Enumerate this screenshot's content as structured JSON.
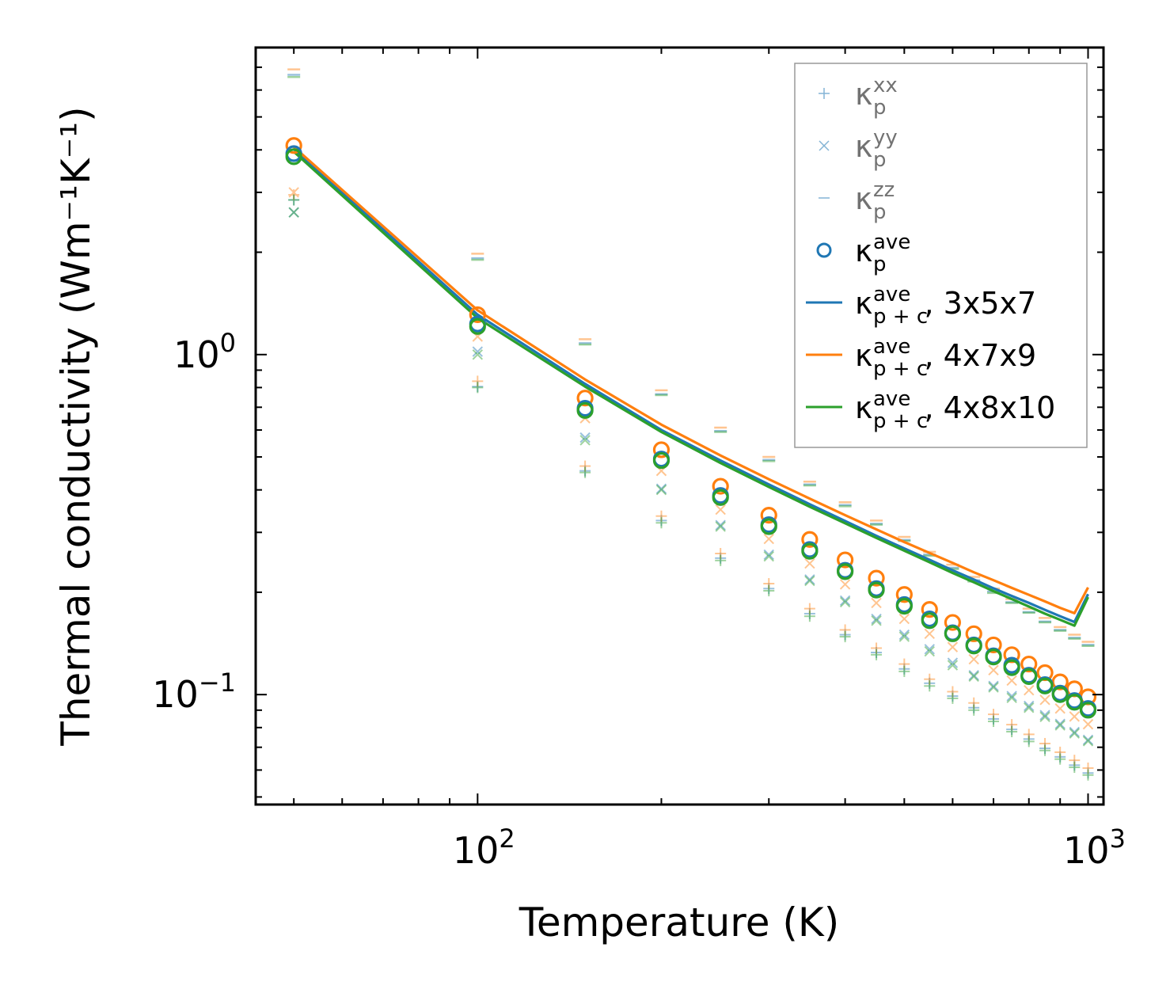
{
  "chart_data": {
    "type": "scatter",
    "title": "",
    "xlabel": "Temperature (K)",
    "ylabel": "Thermal conductivity (Wm⁻¹K⁻¹)",
    "xscale": "log",
    "yscale": "log",
    "xlim": [
      43.3,
      1060
    ],
    "ylim": [
      0.0475,
      8.0
    ],
    "x_ticks": [
      {
        "value": 100,
        "base": "10",
        "exp": "2"
      },
      {
        "value": 1000,
        "base": "10",
        "exp": "3"
      }
    ],
    "y_ticks": [
      {
        "value": 1,
        "base": "10",
        "exp": "0"
      },
      {
        "value": 0.1,
        "base": "10",
        "exp": "−1"
      }
    ],
    "legend_position": "top-right",
    "colors": {
      "blue": "#1f77b4",
      "orange": "#ff7f0e",
      "green": "#2ca02c"
    },
    "legend": [
      {
        "symbol": "+",
        "label": "κ",
        "sub": "p",
        "sup": "xx",
        "suffix": ""
      },
      {
        "symbol": "x",
        "label": "κ",
        "sub": "p",
        "sup": "yy",
        "suffix": ""
      },
      {
        "symbol": "_",
        "label": "κ",
        "sub": "p",
        "sup": "zz",
        "suffix": ""
      },
      {
        "symbol": "o",
        "label": "κ",
        "sub": "p",
        "sup": "ave",
        "suffix": ""
      },
      {
        "symbol": "line-blue",
        "label": "κ",
        "sub": "p + c",
        "sup": "ave",
        "suffix": ", 3x5x7"
      },
      {
        "symbol": "line-orange",
        "label": "κ",
        "sub": "p + c",
        "sup": "ave",
        "suffix": ", 4x7x9"
      },
      {
        "symbol": "line-green",
        "label": "κ",
        "sub": "p + c",
        "sup": "ave",
        "suffix": ", 4x8x10"
      }
    ],
    "x": [
      50,
      100,
      150,
      200,
      250,
      300,
      350,
      400,
      450,
      500,
      550,
      600,
      650,
      700,
      750,
      800,
      850,
      900,
      950,
      1000
    ],
    "series": [
      {
        "name": "3x5x7",
        "color": "#1f77b4",
        "kxx": [
          2.85,
          0.805,
          0.455,
          0.325,
          0.252,
          0.205,
          0.173,
          0.15,
          0.133,
          0.119,
          0.108,
          0.099,
          0.0915,
          0.0848,
          0.079,
          0.074,
          0.0695,
          0.0656,
          0.062,
          0.0588
        ],
        "kyy": [
          2.62,
          1.02,
          0.57,
          0.403,
          0.315,
          0.258,
          0.218,
          0.189,
          0.167,
          0.15,
          0.136,
          0.124,
          0.114,
          0.106,
          0.099,
          0.0926,
          0.087,
          0.082,
          0.0776,
          0.0736
        ],
        "kzz": [
          6.65,
          1.92,
          1.08,
          0.765,
          0.596,
          0.49,
          0.415,
          0.361,
          0.318,
          0.285,
          0.258,
          0.236,
          0.217,
          0.201,
          0.187,
          0.175,
          0.164,
          0.155,
          0.147,
          0.14
        ],
        "kave": [
          3.9,
          1.23,
          0.695,
          0.493,
          0.385,
          0.316,
          0.267,
          0.232,
          0.205,
          0.184,
          0.167,
          0.152,
          0.14,
          0.13,
          0.122,
          0.114,
          0.107,
          0.101,
          0.096,
          0.091
        ],
        "kpc": [
          4.02,
          1.31,
          0.82,
          0.6,
          0.488,
          0.415,
          0.363,
          0.324,
          0.293,
          0.269,
          0.249,
          0.232,
          0.218,
          0.2055,
          0.195,
          0.186,
          0.1775,
          0.17,
          0.1635,
          0.1975
        ]
      },
      {
        "name": "4x7x9",
        "color": "#ff7f0e",
        "kxx": [
          2.95,
          0.835,
          0.47,
          0.335,
          0.26,
          0.212,
          0.179,
          0.155,
          0.137,
          0.123,
          0.111,
          0.102,
          0.0945,
          0.0875,
          0.0816,
          0.0764,
          0.0718,
          0.0677,
          0.0641,
          0.0608
        ],
        "kyy": [
          3.0,
          1.13,
          0.65,
          0.455,
          0.35,
          0.287,
          0.243,
          0.211,
          0.186,
          0.167,
          0.151,
          0.138,
          0.127,
          0.118,
          0.11,
          0.103,
          0.0965,
          0.091,
          0.0862,
          0.0818
        ],
        "kzz": [
          6.9,
          1.98,
          1.11,
          0.785,
          0.61,
          0.5,
          0.423,
          0.368,
          0.325,
          0.291,
          0.263,
          0.241,
          0.222,
          0.205,
          0.191,
          0.179,
          0.168,
          0.158,
          0.15,
          0.143
        ],
        "kave": [
          4.12,
          1.31,
          0.745,
          0.525,
          0.41,
          0.337,
          0.286,
          0.249,
          0.22,
          0.197,
          0.178,
          0.163,
          0.151,
          0.14,
          0.131,
          0.123,
          0.116,
          0.109,
          0.104,
          0.0985
        ],
        "kpc": [
          4.08,
          1.35,
          0.845,
          0.622,
          0.505,
          0.43,
          0.377,
          0.337,
          0.306,
          0.281,
          0.261,
          0.244,
          0.229,
          0.217,
          0.206,
          0.1965,
          0.188,
          0.18,
          0.1735,
          0.2065
        ]
      },
      {
        "name": "4x8x10",
        "color": "#2ca02c",
        "kxx": [
          2.85,
          0.8,
          0.45,
          0.32,
          0.248,
          0.202,
          0.17,
          0.148,
          0.131,
          0.117,
          0.106,
          0.0975,
          0.09,
          0.0834,
          0.0778,
          0.0728,
          0.0685,
          0.0646,
          0.0611,
          0.058
        ],
        "kyy": [
          2.62,
          1.0,
          0.56,
          0.4,
          0.312,
          0.255,
          0.216,
          0.187,
          0.165,
          0.148,
          0.134,
          0.122,
          0.113,
          0.105,
          0.0978,
          0.0915,
          0.086,
          0.0812,
          0.0769,
          0.073
        ],
        "kzz": [
          6.55,
          1.9,
          1.07,
          0.76,
          0.592,
          0.486,
          0.412,
          0.358,
          0.316,
          0.283,
          0.256,
          0.234,
          0.215,
          0.199,
          0.186,
          0.174,
          0.163,
          0.154,
          0.146,
          0.139
        ],
        "kave": [
          3.82,
          1.21,
          0.685,
          0.488,
          0.38,
          0.312,
          0.264,
          0.23,
          0.203,
          0.182,
          0.165,
          0.151,
          0.139,
          0.129,
          0.12,
          0.113,
          0.106,
          0.1,
          0.095,
          0.09
        ],
        "kpc": [
          3.95,
          1.28,
          0.805,
          0.592,
          0.48,
          0.408,
          0.357,
          0.319,
          0.289,
          0.265,
          0.245,
          0.228,
          0.214,
          0.2015,
          0.191,
          0.1815,
          0.173,
          0.166,
          0.1595,
          0.1935
        ]
      }
    ]
  }
}
